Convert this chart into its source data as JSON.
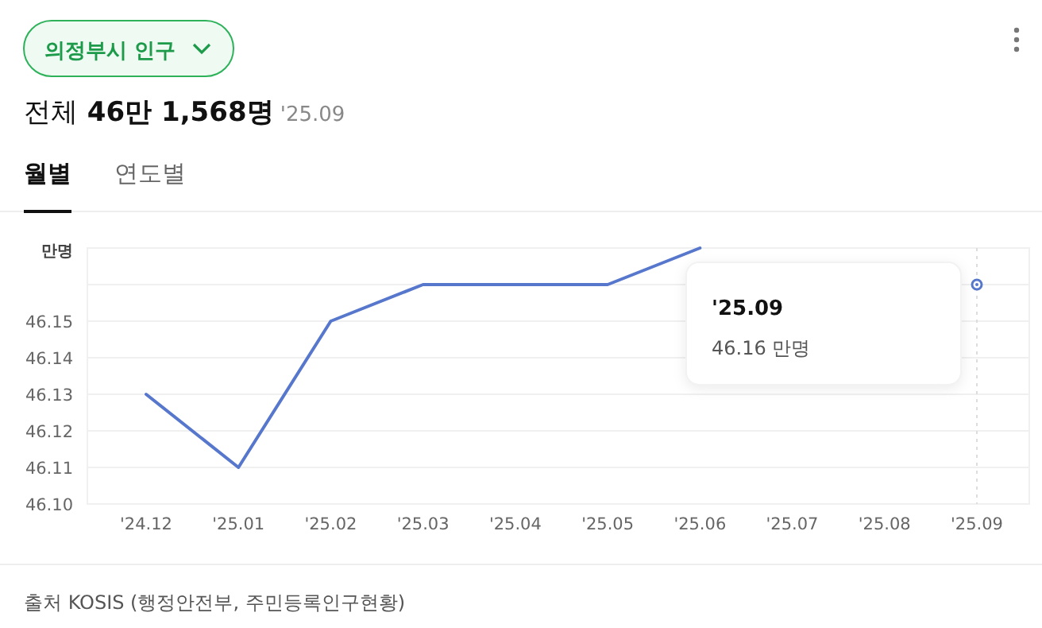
{
  "chart_data": {
    "type": "line",
    "title": "의정부시 인구",
    "subtitle": "전체 46만 1,568명 '25.09",
    "ylabel": "만명",
    "categories": [
      "'24.12",
      "'25.01",
      "'25.02",
      "'25.03",
      "'25.04",
      "'25.05",
      "'25.06",
      "'25.07",
      "'25.08",
      "'25.09"
    ],
    "series": [
      {
        "color": "#5677cc",
        "values": [
          46.13,
          46.11,
          46.15,
          46.16,
          46.16,
          46.16,
          46.17,
          null,
          null,
          46.16
        ]
      }
    ],
    "ylim": [
      46.1,
      46.17
    ],
    "yticks": [
      {
        "value": 46.1,
        "label": "46.10"
      },
      {
        "value": 46.11,
        "label": "46.11"
      },
      {
        "value": 46.12,
        "label": "46.12"
      },
      {
        "value": 46.13,
        "label": "46.13"
      },
      {
        "value": 46.14,
        "label": "46.14"
      },
      {
        "value": 46.15,
        "label": "46.15"
      },
      {
        "value": 46.16,
        "label": null
      },
      {
        "value": 46.17,
        "label": null
      }
    ],
    "grid": "y",
    "marker": "none",
    "line_style": "solid",
    "ref_lines": [
      {
        "axis": "x",
        "value": "'25.09",
        "line_style": "dotted",
        "color": "#dddddd"
      }
    ],
    "annotations": [
      "'25.09\n46.16 만명",
      "월별",
      "연도별",
      "출처 KOSIS (행정안전부, 주민등록인구현황)"
    ]
  }
}
